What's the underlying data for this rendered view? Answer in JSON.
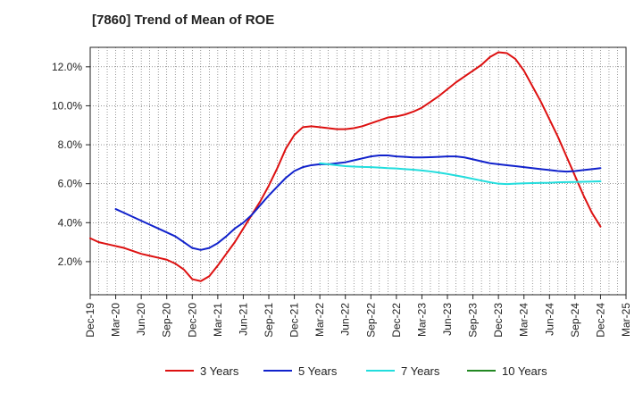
{
  "chart_data": {
    "type": "line",
    "title": "[7860]  Trend of Mean of ROE",
    "xlabel": "",
    "ylabel": "",
    "x_ticks": [
      "Dec-19",
      "Mar-20",
      "Jun-20",
      "Sep-20",
      "Dec-20",
      "Mar-21",
      "Jun-21",
      "Sep-21",
      "Dec-21",
      "Mar-22",
      "Jun-22",
      "Sep-22",
      "Dec-22",
      "Mar-23",
      "Jun-23",
      "Sep-23",
      "Dec-23",
      "Mar-24",
      "Jun-24",
      "Sep-24",
      "Dec-24",
      "Mar-25"
    ],
    "y_ticks": [
      2.0,
      4.0,
      6.0,
      8.0,
      10.0,
      12.0
    ],
    "y_tick_labels": [
      "2.0%",
      "4.0%",
      "6.0%",
      "8.0%",
      "10.0%",
      "12.0%"
    ],
    "ylim": [
      0.3,
      13.0
    ],
    "grid": true,
    "legend_position": "bottom",
    "series": [
      {
        "name": "3 Years",
        "color": "#dd1111",
        "x": [
          "Dec-19",
          "Jan-20",
          "Feb-20",
          "Mar-20",
          "Apr-20",
          "May-20",
          "Jun-20",
          "Jul-20",
          "Aug-20",
          "Sep-20",
          "Oct-20",
          "Nov-20",
          "Dec-20",
          "Jan-21",
          "Feb-21",
          "Mar-21",
          "Apr-21",
          "May-21",
          "Jun-21",
          "Jul-21",
          "Aug-21",
          "Sep-21",
          "Oct-21",
          "Nov-21",
          "Dec-21",
          "Jan-22",
          "Feb-22",
          "Mar-22",
          "Apr-22",
          "May-22",
          "Jun-22",
          "Jul-22",
          "Aug-22",
          "Sep-22",
          "Oct-22",
          "Nov-22",
          "Dec-22",
          "Jan-23",
          "Feb-23",
          "Mar-23",
          "Apr-23",
          "May-23",
          "Jun-23",
          "Jul-23",
          "Aug-23",
          "Sep-23",
          "Oct-23",
          "Nov-23",
          "Dec-23",
          "Jan-24",
          "Feb-24",
          "Mar-24",
          "Apr-24",
          "May-24",
          "Jun-24",
          "Jul-24",
          "Aug-24",
          "Sep-24",
          "Oct-24",
          "Nov-24",
          "Dec-24"
        ],
        "values": [
          3.2,
          3.0,
          2.9,
          2.8,
          2.7,
          2.55,
          2.4,
          2.3,
          2.2,
          2.1,
          1.9,
          1.6,
          1.1,
          1.0,
          1.25,
          1.8,
          2.4,
          3.0,
          3.7,
          4.4,
          5.1,
          5.9,
          6.8,
          7.8,
          8.5,
          8.9,
          8.95,
          8.9,
          8.85,
          8.8,
          8.8,
          8.85,
          8.95,
          9.1,
          9.25,
          9.4,
          9.45,
          9.55,
          9.7,
          9.9,
          10.2,
          10.5,
          10.85,
          11.2,
          11.5,
          11.8,
          12.1,
          12.5,
          12.75,
          12.7,
          12.4,
          11.8,
          11.0,
          10.2,
          9.3,
          8.4,
          7.4,
          6.4,
          5.4,
          4.5,
          3.8
        ]
      },
      {
        "name": "5 Years",
        "color": "#1122cc",
        "x": [
          "Mar-20",
          "Apr-20",
          "May-20",
          "Jun-20",
          "Jul-20",
          "Aug-20",
          "Sep-20",
          "Oct-20",
          "Nov-20",
          "Dec-20",
          "Jan-21",
          "Feb-21",
          "Mar-21",
          "Apr-21",
          "May-21",
          "Jun-21",
          "Jul-21",
          "Aug-21",
          "Sep-21",
          "Oct-21",
          "Nov-21",
          "Dec-21",
          "Jan-22",
          "Feb-22",
          "Mar-22",
          "Apr-22",
          "May-22",
          "Jun-22",
          "Jul-22",
          "Aug-22",
          "Sep-22",
          "Oct-22",
          "Nov-22",
          "Dec-22",
          "Jan-23",
          "Feb-23",
          "Mar-23",
          "Apr-23",
          "May-23",
          "Jun-23",
          "Jul-23",
          "Aug-23",
          "Sep-23",
          "Oct-23",
          "Nov-23",
          "Dec-23",
          "Jan-24",
          "Feb-24",
          "Mar-24",
          "Apr-24",
          "May-24",
          "Jun-24",
          "Jul-24",
          "Aug-24",
          "Sep-24",
          "Oct-24",
          "Nov-24",
          "Dec-24"
        ],
        "values": [
          4.7,
          4.5,
          4.3,
          4.1,
          3.9,
          3.7,
          3.5,
          3.3,
          3.0,
          2.7,
          2.6,
          2.7,
          2.95,
          3.3,
          3.7,
          4.0,
          4.4,
          4.9,
          5.4,
          5.85,
          6.3,
          6.65,
          6.85,
          6.95,
          7.0,
          7.0,
          7.05,
          7.1,
          7.2,
          7.3,
          7.4,
          7.45,
          7.45,
          7.4,
          7.38,
          7.35,
          7.35,
          7.36,
          7.38,
          7.4,
          7.4,
          7.35,
          7.25,
          7.15,
          7.05,
          7.0,
          6.95,
          6.9,
          6.85,
          6.8,
          6.75,
          6.7,
          6.65,
          6.62,
          6.65,
          6.7,
          6.75,
          6.8
        ]
      },
      {
        "name": "7 Years",
        "color": "#22dddd",
        "x": [
          "Mar-22",
          "Apr-22",
          "May-22",
          "Jun-22",
          "Jul-22",
          "Aug-22",
          "Sep-22",
          "Oct-22",
          "Nov-22",
          "Dec-22",
          "Jan-23",
          "Feb-23",
          "Mar-23",
          "Apr-23",
          "May-23",
          "Jun-23",
          "Jul-23",
          "Aug-23",
          "Sep-23",
          "Oct-23",
          "Nov-23",
          "Dec-23",
          "Jan-24",
          "Feb-24",
          "Mar-24",
          "Apr-24",
          "May-24",
          "Jun-24",
          "Jul-24",
          "Aug-24",
          "Sep-24",
          "Oct-24",
          "Nov-24",
          "Dec-24"
        ],
        "values": [
          7.05,
          7.0,
          6.95,
          6.9,
          6.88,
          6.86,
          6.85,
          6.83,
          6.8,
          6.78,
          6.75,
          6.72,
          6.68,
          6.63,
          6.57,
          6.5,
          6.42,
          6.34,
          6.25,
          6.16,
          6.07,
          6.0,
          5.98,
          6.0,
          6.02,
          6.03,
          6.04,
          6.05,
          6.07,
          6.08,
          6.09,
          6.1,
          6.11,
          6.12
        ]
      },
      {
        "name": "10 Years",
        "color": "#228822",
        "x": [],
        "values": []
      }
    ]
  }
}
